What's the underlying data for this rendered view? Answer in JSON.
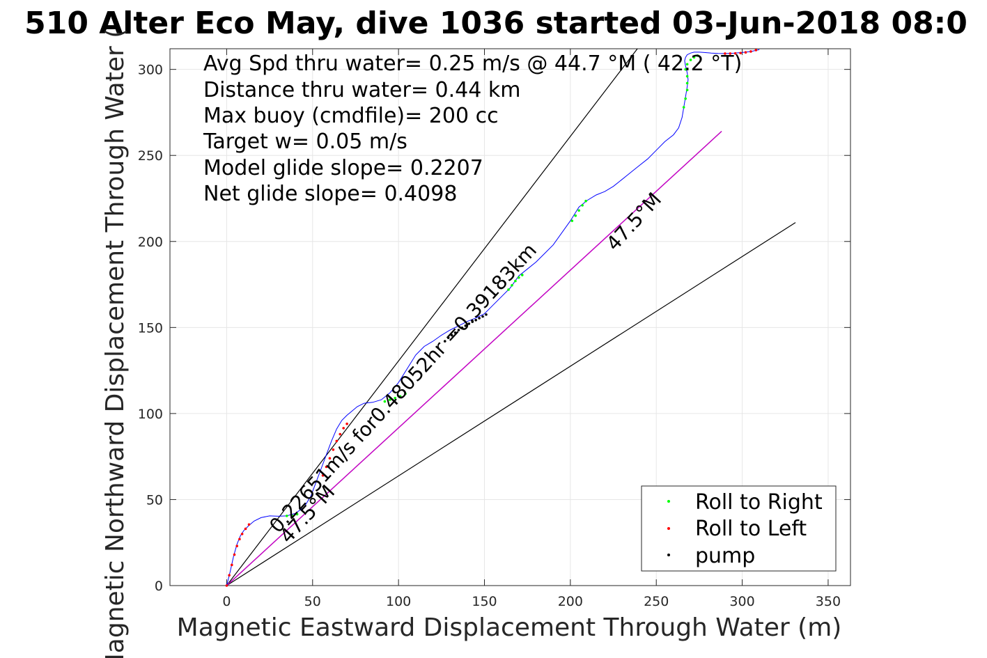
{
  "chart_data": {
    "type": "line",
    "title": "510 Alter Eco May, dive 1036 started 03-Jun-2018 08:0",
    "xlabel": "Magnetic Eastward Displacement Through Water (m)",
    "ylabel": "Magnetic Northward Displacement Through Water (",
    "xlim": [
      -33,
      363
    ],
    "ylim": [
      0,
      312
    ],
    "xticks": [
      0,
      50,
      100,
      150,
      200,
      250,
      300,
      350
    ],
    "yticks": [
      0,
      50,
      100,
      150,
      200,
      250,
      300
    ],
    "grid": true,
    "legend_position": "bottom-right",
    "info_lines": [
      "Avg Spd thru water=  0.25 m/s @  44.7 °M ( 42.2 °T)",
      "Distance thru water=  0.44 km",
      "Max buoy (cmdfile)= 200 cc",
      "Target w= 0.05 m/s",
      "Model glide slope= 0.2207",
      "Net glide slope= 0.4098"
    ],
    "annotations": [
      {
        "text": "0.22651m/s for0.48052hr =0.39183km",
        "x": 30,
        "y": 30,
        "angle_deg": 47.5
      },
      {
        "text": "47.5°M",
        "x": 36,
        "y": 24,
        "angle_deg": 47.5
      },
      {
        "text": "47.5°M",
        "x": 226,
        "y": 194,
        "angle_deg": 47.5
      }
    ],
    "colors": {
      "track": "#0000ff",
      "net_line": "#cc00cc",
      "reference_lines": "#000000",
      "roll_right": "#00ff00",
      "roll_left": "#ff0000",
      "pump": "#000000",
      "grid": "#e6e6e6"
    },
    "series": [
      {
        "kind": "track",
        "x": [
          0,
          2,
          4,
          6,
          8,
          10,
          13,
          16,
          20,
          25,
          30,
          35,
          40,
          45,
          49,
          52,
          55,
          58,
          61,
          64,
          67,
          70,
          73,
          76,
          80,
          85,
          90,
          95,
          100,
          105,
          110,
          115,
          120,
          125,
          130,
          135,
          140,
          145,
          150,
          155,
          160,
          165,
          170,
          175,
          180,
          185,
          190,
          195,
          200,
          205,
          210,
          215,
          220,
          225,
          230,
          235,
          240,
          245,
          250,
          255,
          260,
          263,
          265,
          266,
          267,
          268,
          268.5,
          268,
          267,
          266.5,
          267,
          268,
          270,
          272,
          275,
          278,
          282,
          286,
          290,
          295,
          300,
          305,
          310
        ],
        "y": [
          0,
          8,
          17,
          24,
          29,
          32,
          35,
          37.5,
          39.5,
          40.5,
          40.3,
          40.5,
          42,
          45.5,
          52,
          60,
          68,
          76,
          84,
          91,
          96,
          99,
          101.5,
          104,
          106,
          106.5,
          108,
          112,
          118,
          126,
          134,
          139,
          142,
          145.5,
          148.5,
          151,
          153.5,
          155.5,
          158,
          163,
          168,
          173,
          180,
          184,
          188,
          193,
          198,
          205,
          212,
          220,
          224,
          227,
          229,
          232,
          236,
          240,
          244,
          248,
          253,
          258,
          262,
          266,
          272,
          278,
          284,
          290,
          294,
          298,
          302,
          305,
          307,
          308.5,
          309.5,
          310,
          310,
          309.8,
          309.5,
          309.3,
          309.2,
          309.4,
          309.8,
          310.4,
          311.5
        ]
      },
      {
        "kind": "roll_right_markers",
        "x": [
          35,
          38,
          41,
          92,
          95,
          98,
          101,
          104,
          164,
          166,
          168,
          170,
          172,
          201,
          203,
          205,
          207,
          209,
          266,
          267,
          268,
          268,
          268,
          267,
          268,
          270,
          272,
          274
        ],
        "y": [
          40.5,
          40.6,
          41.5,
          107,
          108,
          109,
          110,
          111.5,
          172,
          174.5,
          177,
          179,
          180.5,
          212,
          215,
          218,
          221,
          223.5,
          278,
          283,
          288,
          292,
          296,
          300,
          303,
          305.5,
          307,
          308
        ]
      },
      {
        "kind": "roll_left_markers",
        "x": [
          0,
          1.5,
          3,
          4.5,
          6,
          7.5,
          9,
          11,
          13,
          56,
          58,
          60,
          62,
          64,
          66,
          68,
          70,
          290,
          293,
          296,
          299,
          302,
          305,
          308
        ],
        "y": [
          0,
          6,
          12,
          18,
          23,
          27,
          30,
          33,
          35.5,
          64,
          69,
          74,
          79,
          84,
          88,
          91.5,
          94,
          309.2,
          309.2,
          309.3,
          309.5,
          309.9,
          310.4,
          311.2
        ]
      },
      {
        "kind": "pump_markers",
        "x": [
          127,
          129,
          131,
          133,
          135,
          137,
          139,
          141,
          143,
          145,
          147,
          149,
          151
        ],
        "y": [
          142,
          144,
          145.5,
          147,
          148.5,
          149.8,
          151,
          152.2,
          153.3,
          154.3,
          155.4,
          156.4,
          157.5
        ]
      },
      {
        "kind": "net_line",
        "x": [
          0,
          288
        ],
        "y": [
          0,
          264
        ]
      },
      {
        "kind": "reference_lines",
        "lines": [
          {
            "x": [
              0,
              239
            ],
            "y": [
              0,
              312
            ]
          },
          {
            "x": [
              0,
              331
            ],
            "y": [
              0,
              211
            ]
          },
          {
            "x": [
              0,
              288
            ],
            "y": [
              0,
              264
            ]
          }
        ]
      }
    ],
    "legend": {
      "entries": [
        {
          "label": "Roll to Right",
          "color": "#00ff00"
        },
        {
          "label": "Roll to Left",
          "color": "#ff0000"
        },
        {
          "label": "pump",
          "color": "#000000"
        }
      ]
    }
  }
}
